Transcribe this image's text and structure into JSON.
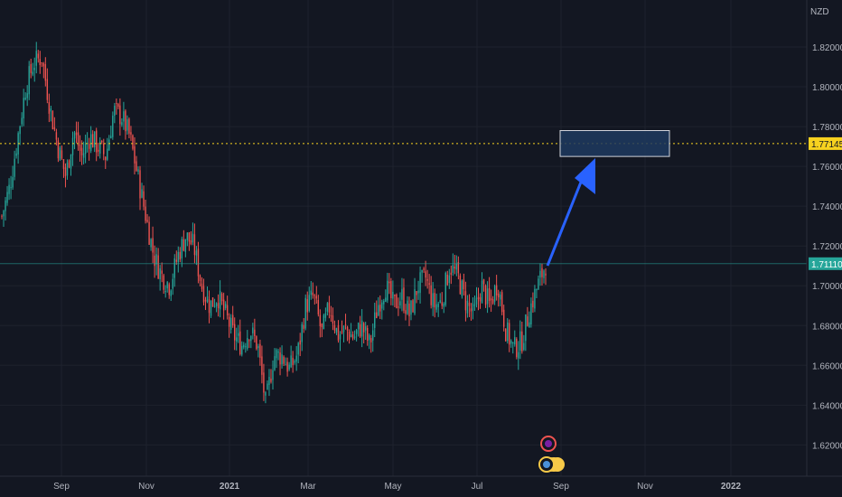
{
  "chart_data": {
    "type": "candlestick",
    "currency_label": "NZD",
    "y_axis": {
      "ylim": [
        1.612,
        1.83
      ],
      "ticks": [
        "1.82000",
        "1.80000",
        "1.78000",
        "1.76000",
        "1.74000",
        "1.72000",
        "1.70000",
        "1.68000",
        "1.66000",
        "1.64000",
        "1.62000"
      ]
    },
    "x_axis": {
      "labels": [
        "Sep",
        "Nov",
        "2021",
        "Mar",
        "May",
        "Jul",
        "Sep",
        "Nov",
        "2022"
      ]
    },
    "target_level": {
      "value": 1.77145,
      "label": "1.77145",
      "color": "#f7d21f"
    },
    "current_price": {
      "value": 1.7111,
      "label": "1.71110",
      "color": "#26a69a"
    },
    "target_zone": {
      "low": 1.765,
      "high": 1.778
    },
    "colors": {
      "up": "#26a69a",
      "down": "#ef5350",
      "arrow": "#2962ff",
      "zone_border": "#d1d4dc",
      "zone_fill": "#1e3a5f"
    },
    "price_path": [
      1.735,
      1.75,
      1.775,
      1.8,
      1.812,
      1.815,
      1.79,
      1.77,
      1.755,
      1.778,
      1.765,
      1.775,
      1.77,
      1.765,
      1.788,
      1.785,
      1.775,
      1.755,
      1.735,
      1.715,
      1.705,
      1.7,
      1.715,
      1.725,
      1.72,
      1.7,
      1.69,
      1.695,
      1.685,
      1.675,
      1.67,
      1.678,
      1.67,
      1.64,
      1.665,
      1.665,
      1.658,
      1.666,
      1.69,
      1.695,
      1.676,
      1.69,
      1.675,
      1.678,
      1.674,
      1.68,
      1.67,
      1.69,
      1.7,
      1.69,
      1.695,
      1.685,
      1.7,
      1.704,
      1.69,
      1.692,
      1.71,
      1.705,
      1.692,
      1.685,
      1.7,
      1.69,
      1.702,
      1.678,
      1.668,
      1.672,
      1.688,
      1.7,
      1.711
    ]
  }
}
